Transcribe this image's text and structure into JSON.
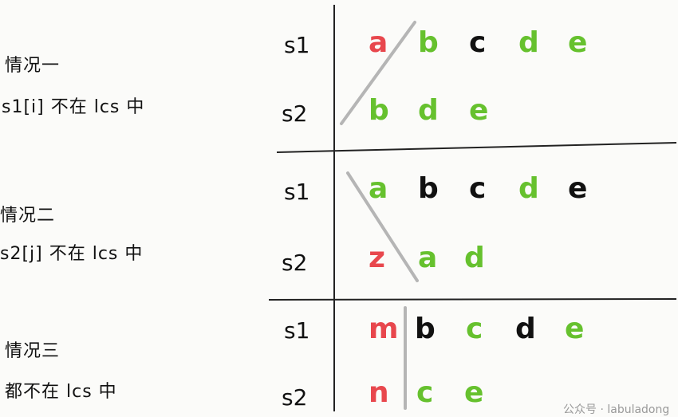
{
  "cases": [
    {
      "title": "情况一",
      "desc": "s1[i] 不在 lcs 中"
    },
    {
      "title": "情况二",
      "desc": "s2[j] 不在 lcs 中"
    },
    {
      "title": "情况三",
      "desc": "都不在 lcs 中"
    }
  ],
  "row_labels": {
    "s1": "s1",
    "s2": "s2"
  },
  "grid": [
    {
      "s1": [
        "a",
        "b",
        "c",
        "d",
        "e"
      ],
      "s2": [
        "b",
        "d",
        "e"
      ]
    },
    {
      "s1": [
        "a",
        "b",
        "c",
        "d",
        "e"
      ],
      "s2": [
        "z",
        "a",
        "d"
      ]
    },
    {
      "s1": [
        "m",
        "b",
        "c",
        "d",
        "e"
      ],
      "s2": [
        "n",
        "c",
        "e"
      ]
    }
  ],
  "watermark": "公众号 · labuladong",
  "colors": {
    "red": "#e8474d",
    "green": "#66c12e",
    "black": "#111111",
    "grid_line": "#222222",
    "strike_line": "#b5b5b5"
  }
}
